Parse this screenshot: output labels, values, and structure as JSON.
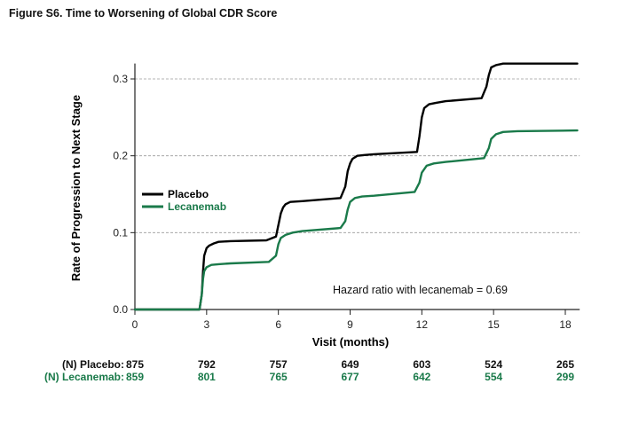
{
  "title": "Figure S6.  Time to Worsening of Global CDR Score",
  "chart_data": {
    "type": "line",
    "ylabel": "Rate of Progression to Next Stage",
    "xlabel": "Visit (months)",
    "xlim": [
      0,
      18.6
    ],
    "ylim": [
      0,
      0.32
    ],
    "xticks": [
      "0",
      "3",
      "6",
      "9",
      "12",
      "15",
      "18"
    ],
    "yticks": [
      "0.0",
      "0.1",
      "0.2",
      "0.3"
    ],
    "grid": "horizontal dashed",
    "legend_position": "middle-left",
    "annotation": "Hazard ratio with lecanemab = 0.69",
    "series": [
      {
        "name": "Placebo",
        "color": "#000000",
        "x": [
          0,
          2.7,
          2.8,
          2.85,
          2.9,
          3.0,
          3.1,
          3.3,
          3.5,
          4.0,
          5.5,
          5.9,
          6.0,
          6.1,
          6.2,
          6.3,
          6.5,
          7.0,
          8.6,
          8.8,
          8.9,
          9.0,
          9.1,
          9.3,
          9.6,
          10.0,
          11.8,
          11.9,
          12.0,
          12.1,
          12.3,
          12.6,
          13.0,
          14.5,
          14.7,
          14.8,
          14.9,
          15.1,
          15.4,
          16.0,
          18.5
        ],
        "values": [
          0,
          0,
          0.02,
          0.05,
          0.07,
          0.08,
          0.083,
          0.086,
          0.088,
          0.089,
          0.09,
          0.095,
          0.11,
          0.125,
          0.133,
          0.137,
          0.14,
          0.141,
          0.145,
          0.16,
          0.18,
          0.19,
          0.196,
          0.2,
          0.201,
          0.202,
          0.205,
          0.225,
          0.25,
          0.262,
          0.267,
          0.269,
          0.271,
          0.275,
          0.29,
          0.305,
          0.315,
          0.318,
          0.32,
          0.32,
          0.32
        ]
      },
      {
        "name": "Lecanemab",
        "color": "#1a7a4a",
        "x": [
          0,
          2.7,
          2.8,
          2.85,
          2.9,
          3.0,
          3.2,
          3.5,
          4.0,
          5.6,
          5.9,
          6.0,
          6.1,
          6.3,
          6.6,
          7.0,
          8.6,
          8.8,
          8.9,
          9.0,
          9.2,
          9.5,
          10.0,
          11.7,
          11.9,
          12.0,
          12.2,
          12.5,
          13.0,
          14.6,
          14.8,
          14.9,
          15.1,
          15.4,
          16.0,
          18.5
        ],
        "values": [
          0,
          0,
          0.02,
          0.04,
          0.05,
          0.055,
          0.058,
          0.059,
          0.06,
          0.062,
          0.07,
          0.085,
          0.093,
          0.097,
          0.1,
          0.102,
          0.106,
          0.115,
          0.13,
          0.14,
          0.145,
          0.147,
          0.148,
          0.153,
          0.165,
          0.178,
          0.187,
          0.19,
          0.192,
          0.197,
          0.21,
          0.222,
          0.228,
          0.231,
          0.232,
          0.233
        ]
      }
    ],
    "at_risk": {
      "x": [
        0,
        3,
        6,
        9,
        12,
        15,
        18
      ],
      "rows": [
        {
          "label": "(N) Placebo:",
          "color": "#111111",
          "values": [
            "875",
            "792",
            "757",
            "649",
            "603",
            "524",
            "265"
          ]
        },
        {
          "label": "(N) Lecanemab:",
          "color": "#1a7a4a",
          "values": [
            "859",
            "801",
            "765",
            "677",
            "642",
            "554",
            "299"
          ]
        }
      ]
    }
  }
}
